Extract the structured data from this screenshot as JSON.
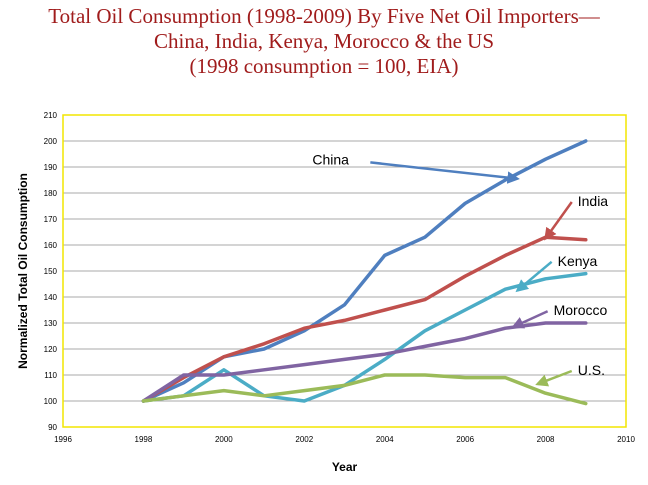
{
  "chart_data": {
    "type": "line",
    "title": [
      "Total Oil Consumption (1998-2009) By Five Net Oil Importers—",
      "China, India, Kenya, Morocco & the US",
      "(1998 consumption = 100, EIA)"
    ],
    "xlabel": "Year",
    "ylabel": "Normalized Total Oil Consumption",
    "xlim": [
      1996,
      2010
    ],
    "ylim": [
      90,
      210
    ],
    "xticks": [
      1996,
      1998,
      2000,
      2002,
      2004,
      2006,
      2008,
      2010
    ],
    "yticks": [
      90,
      100,
      110,
      120,
      130,
      140,
      150,
      160,
      170,
      180,
      190,
      200,
      210
    ],
    "grid": true,
    "legend": "inline annotations with arrows",
    "plot_border_color": "#f2e600",
    "x": [
      1998,
      1999,
      2000,
      2001,
      2002,
      2003,
      2004,
      2005,
      2006,
      2007,
      2008,
      2009
    ],
    "series": [
      {
        "name": "China",
        "color": "#4f7fbf",
        "values": [
          100,
          107,
          117,
          120,
          127,
          137,
          156,
          163,
          176,
          185,
          193,
          200
        ],
        "label_pos": [
          2002.2,
          191
        ],
        "arrow_to": [
          2007.3,
          185.5
        ]
      },
      {
        "name": "India",
        "color": "#c0504d",
        "values": [
          100,
          109,
          117,
          122,
          128,
          131,
          135,
          139,
          148,
          156,
          163,
          162
        ],
        "label_pos": [
          2008.8,
          175
        ],
        "arrow_to": [
          2008.0,
          162.5
        ]
      },
      {
        "name": "Kenya",
        "color": "#4bacc6",
        "values": [
          100,
          102,
          112,
          102,
          100,
          106,
          116,
          127,
          135,
          143,
          147,
          149
        ],
        "label_pos": [
          2008.3,
          152
        ],
        "arrow_to": [
          2007.3,
          142.5
        ]
      },
      {
        "name": "Morocco",
        "color": "#8064a2",
        "values": [
          100,
          110,
          110,
          112,
          114,
          116,
          118,
          121,
          124,
          128,
          130,
          130
        ],
        "label_pos": [
          2008.2,
          133
        ],
        "arrow_to": [
          2007.2,
          128.5
        ]
      },
      {
        "name": "U.S.",
        "color": "#9bbb59",
        "values": [
          100,
          102,
          104,
          102,
          104,
          106,
          110,
          110,
          109,
          109,
          103,
          99
        ],
        "label_pos": [
          2008.8,
          110
        ],
        "arrow_to": [
          2007.8,
          106.5
        ]
      }
    ]
  }
}
